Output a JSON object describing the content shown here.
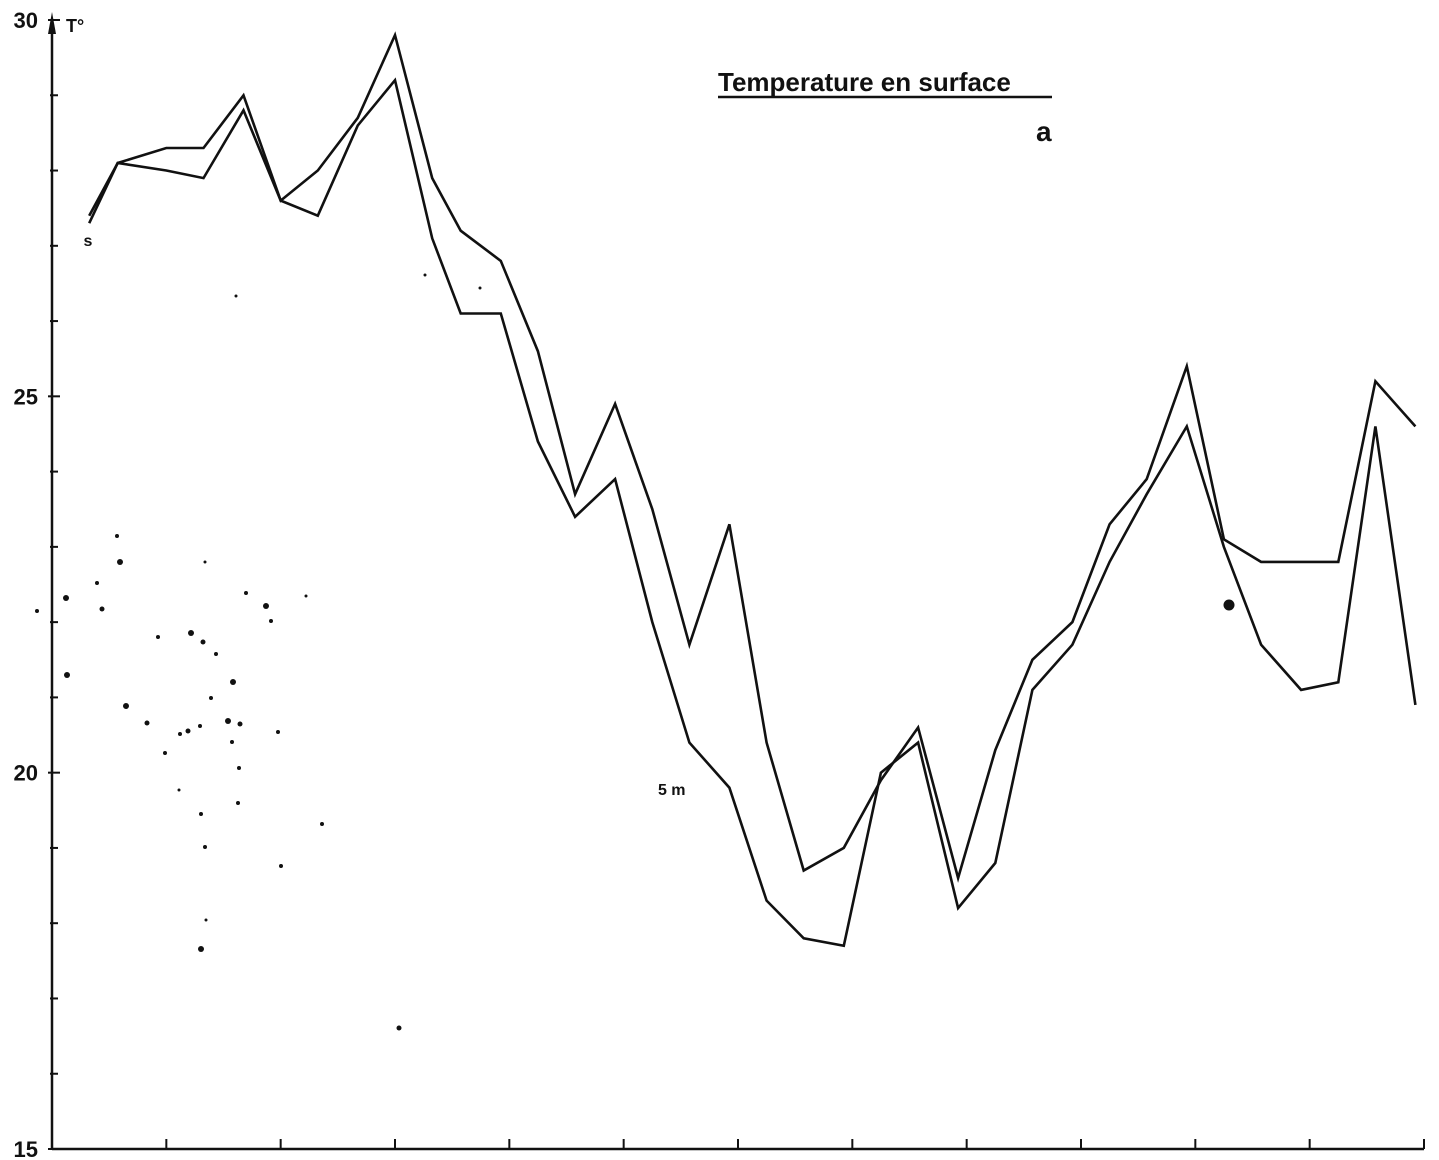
{
  "chart_data": {
    "type": "line",
    "title": "Temperature en surface",
    "panel_label": "a",
    "ylabel": "T°",
    "xlabel": "",
    "ylim": [
      15,
      30
    ],
    "xlim": [
      0,
      48
    ],
    "x_ticks": [
      0,
      4,
      8,
      12,
      16,
      20,
      24,
      28,
      32,
      36,
      40,
      44,
      48
    ],
    "y_ticks": [
      15,
      20,
      25,
      30
    ],
    "y_tick_labels": [
      "15",
      "20",
      "25",
      "30"
    ],
    "grid": false,
    "annotations": [
      {
        "text": "s",
        "x": 1.1,
        "y": 27.0
      },
      {
        "text": "5 m",
        "x": 21.2,
        "y": 19.7
      }
    ],
    "series": [
      {
        "x": [
          1.3,
          2.3,
          4,
          5.3,
          6.7,
          8,
          9.3,
          10.7,
          12,
          13.3,
          14.3,
          15.7,
          17,
          18.3,
          19.7,
          21,
          22.3,
          23.7,
          25,
          26.3,
          27.7,
          29,
          30.3,
          31.7,
          33,
          34.3,
          35.7,
          37,
          38.3,
          39.7,
          41,
          42.3,
          43.7,
          45,
          46.3,
          47.7
        ],
        "y": [
          27.3,
          28.1,
          28.3,
          28.3,
          29.0,
          27.6,
          28.0,
          28.7,
          29.8,
          27.9,
          27.2,
          26.8,
          25.6,
          23.7,
          24.9,
          23.5,
          21.7,
          23.3,
          20.4,
          18.7,
          19.0,
          19.9,
          20.6,
          18.6,
          20.3,
          21.5,
          22.0,
          23.3,
          23.9,
          25.4,
          23.1,
          22.8,
          22.8,
          22.8,
          25.2,
          24.6
        ]
      },
      {
        "x": [
          1.3,
          2.3,
          4,
          5.3,
          6.7,
          8,
          9.3,
          10.7,
          12,
          13.3,
          14.3,
          15.7,
          17,
          18.3,
          19.7,
          21,
          22.3,
          23.7,
          25,
          26.3,
          27.7,
          29,
          30.3,
          31.7,
          33,
          34.3,
          35.7,
          37,
          38.3,
          39.7,
          41,
          42.3,
          43.7,
          45,
          46.3,
          47.7
        ],
        "y": [
          27.4,
          28.1,
          28.0,
          27.9,
          28.8,
          27.6,
          27.4,
          28.6,
          29.2,
          27.1,
          26.1,
          26.1,
          24.4,
          23.4,
          23.9,
          22.0,
          20.4,
          19.8,
          18.3,
          17.8,
          17.7,
          20.0,
          20.4,
          18.2,
          18.8,
          21.1,
          21.7,
          22.8,
          23.7,
          24.6,
          23.0,
          21.7,
          21.1,
          21.2,
          24.6,
          20.9
        ]
      }
    ]
  }
}
